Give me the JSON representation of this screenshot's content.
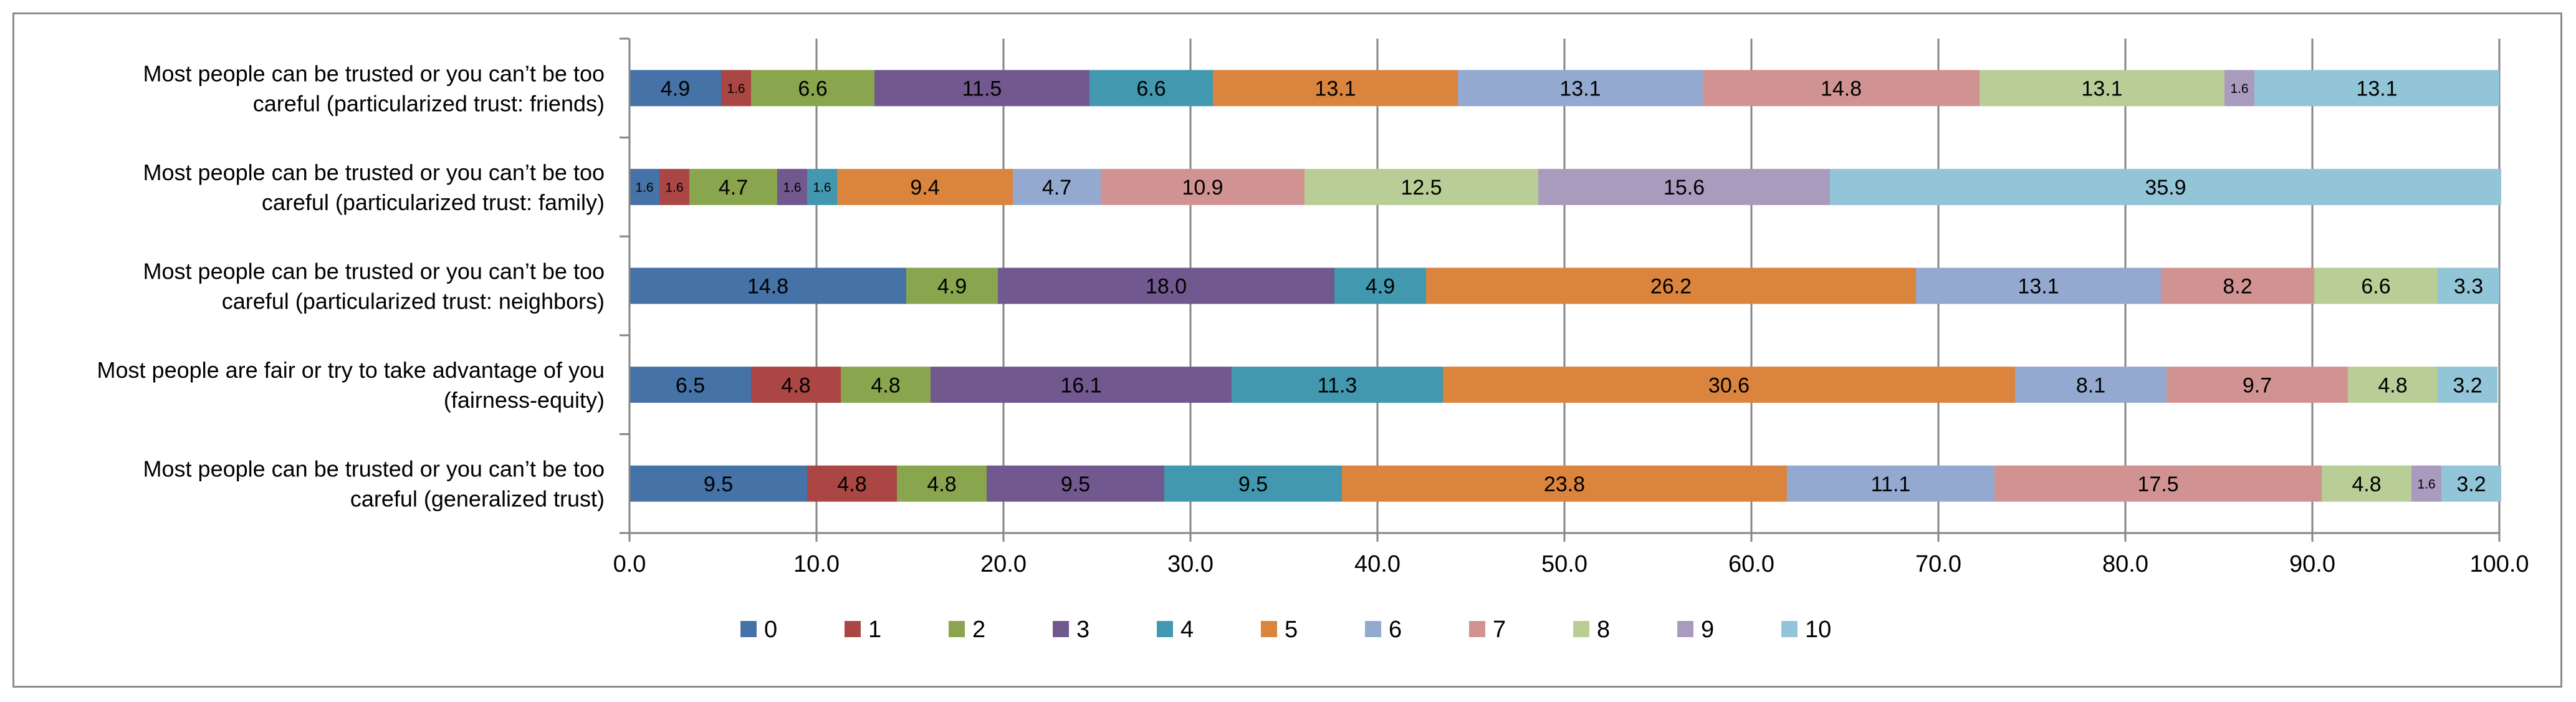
{
  "chart_data": {
    "type": "bar",
    "orientation": "horizontal",
    "stacked": true,
    "xlim": [
      0,
      100
    ],
    "x_ticks": [
      "0.0",
      "10.0",
      "20.0",
      "30.0",
      "40.0",
      "50.0",
      "60.0",
      "70.0",
      "80.0",
      "90.0",
      "100.0"
    ],
    "grid": true,
    "legend_position": "bottom",
    "categories": [
      [
        "Most people can be trusted or you can’t be too",
        "careful (particularized trust: friends)"
      ],
      [
        "Most people can be trusted or you can’t be too",
        "careful (particularized trust: family)"
      ],
      [
        "Most people can be trusted or you can’t be too",
        "careful (particularized trust: neighbors)"
      ],
      [
        "Most people are fair or try to take advantage of you",
        "(fairness-equity)"
      ],
      [
        "Most people can be trusted or you can’t be too",
        "careful (generalized trust)"
      ]
    ],
    "series": [
      {
        "name": "0",
        "color": "#4572A7",
        "values": [
          4.9,
          1.6,
          14.8,
          6.5,
          9.5
        ]
      },
      {
        "name": "1",
        "color": "#AA4643",
        "values": [
          1.6,
          1.6,
          0,
          4.8,
          4.8
        ]
      },
      {
        "name": "2",
        "color": "#89A54E",
        "values": [
          6.6,
          4.7,
          4.9,
          4.8,
          4.8
        ]
      },
      {
        "name": "3",
        "color": "#71588F",
        "values": [
          11.5,
          1.6,
          18.0,
          16.1,
          9.5
        ]
      },
      {
        "name": "4",
        "color": "#4198AF",
        "values": [
          6.6,
          1.6,
          4.9,
          11.3,
          9.5
        ]
      },
      {
        "name": "5",
        "color": "#DB843D",
        "values": [
          13.1,
          9.4,
          26.2,
          30.6,
          23.8
        ]
      },
      {
        "name": "6",
        "color": "#93A9CF",
        "values": [
          13.1,
          4.7,
          13.1,
          8.1,
          11.1
        ]
      },
      {
        "name": "7",
        "color": "#D19392",
        "values": [
          14.8,
          10.9,
          8.2,
          9.7,
          17.5
        ]
      },
      {
        "name": "8",
        "color": "#B9CD96",
        "values": [
          13.1,
          12.5,
          6.6,
          4.8,
          4.8
        ]
      },
      {
        "name": "9",
        "color": "#A99BBD",
        "values": [
          1.6,
          15.6,
          0,
          0,
          1.6
        ]
      },
      {
        "name": "10",
        "color": "#92C5D8",
        "values": [
          13.1,
          35.9,
          3.3,
          3.2,
          3.2
        ]
      }
    ]
  }
}
